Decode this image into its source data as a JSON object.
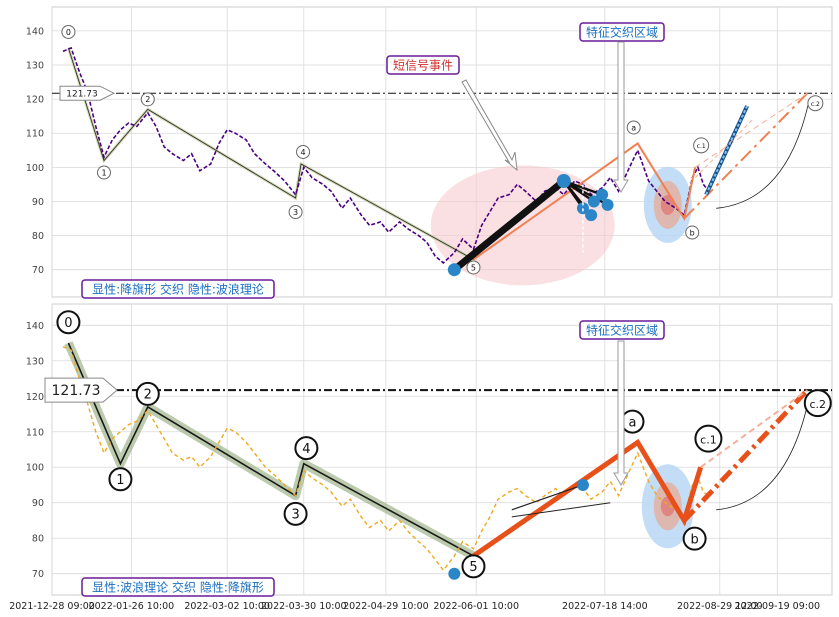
{
  "chart_data": [
    {
      "type": "line",
      "panel": "top",
      "caption": "显性:降旗形 交织 隐性:波浪理论",
      "ylim": [
        62,
        147
      ],
      "yticks": [
        70,
        80,
        90,
        100,
        110,
        120,
        130,
        140
      ],
      "grid": true,
      "reference_line": {
        "value": 121.73,
        "label": "121.73"
      },
      "wave_points": [
        {
          "label": "0",
          "x": "2022-01-03",
          "y": 135
        },
        {
          "label": "1",
          "x": "2022-01-16",
          "y": 102
        },
        {
          "label": "2",
          "x": "2022-02-01",
          "y": 117
        },
        {
          "label": "3",
          "x": "2022-03-27",
          "y": 91
        },
        {
          "label": "4",
          "x": "2022-03-29",
          "y": 101
        },
        {
          "label": "5",
          "x": "2022-05-31",
          "y": 73
        }
      ],
      "abc_points": [
        {
          "label": "a",
          "x": "2022-07-30",
          "y": 107
        },
        {
          "label": "b",
          "x": "2022-08-16",
          "y": 85
        },
        {
          "label": "c.1",
          "x": "2022-08-20",
          "y": 100
        },
        {
          "label": "c.2",
          "x": "2022-09-30",
          "y": 121.73
        }
      ],
      "annotations": [
        "短信号事件",
        "特征交织区域"
      ],
      "series": [
        {
          "name": "",
          "color": "#4b0082",
          "values": [
            [
              "2022-01-01",
              134
            ],
            [
              "2022-01-04",
              135
            ],
            [
              "2022-01-07",
              128
            ],
            [
              "2022-01-10",
              122
            ],
            [
              "2022-01-13",
              112
            ],
            [
              "2022-01-16",
              103
            ],
            [
              "2022-01-19",
              108
            ],
            [
              "2022-01-22",
              111
            ],
            [
              "2022-01-25",
              113
            ],
            [
              "2022-01-28",
              112
            ],
            [
              "2022-02-01",
              116
            ],
            [
              "2022-02-04",
              112
            ],
            [
              "2022-02-07",
              106
            ],
            [
              "2022-02-10",
              104
            ],
            [
              "2022-02-14",
              102
            ],
            [
              "2022-02-17",
              104
            ],
            [
              "2022-02-20",
              99
            ],
            [
              "2022-02-24",
              101
            ],
            [
              "2022-02-27",
              107
            ],
            [
              "2022-03-02",
              111
            ],
            [
              "2022-03-05",
              110
            ],
            [
              "2022-03-09",
              108
            ],
            [
              "2022-03-12",
              104
            ],
            [
              "2022-03-16",
              101
            ],
            [
              "2022-03-19",
              99
            ],
            [
              "2022-03-23",
              96
            ],
            [
              "2022-03-27",
              92
            ],
            [
              "2022-03-30",
              100
            ],
            [
              "2022-04-02",
              97
            ],
            [
              "2022-04-06",
              95
            ],
            [
              "2022-04-09",
              93
            ],
            [
              "2022-04-13",
              88
            ],
            [
              "2022-04-16",
              91
            ],
            [
              "2022-04-20",
              86
            ],
            [
              "2022-04-23",
              83
            ],
            [
              "2022-04-27",
              84
            ],
            [
              "2022-04-30",
              81
            ],
            [
              "2022-05-04",
              84
            ],
            [
              "2022-05-07",
              82
            ],
            [
              "2022-05-11",
              80
            ],
            [
              "2022-05-14",
              78
            ],
            [
              "2022-05-17",
              74
            ],
            [
              "2022-05-20",
              72
            ],
            [
              "2022-05-24",
              75
            ],
            [
              "2022-05-27",
              79
            ],
            [
              "2022-05-31",
              76
            ],
            [
              "2022-06-03",
              83
            ],
            [
              "2022-06-06",
              87
            ],
            [
              "2022-06-09",
              91
            ],
            [
              "2022-06-13",
              92
            ],
            [
              "2022-06-16",
              95
            ],
            [
              "2022-06-19",
              93
            ],
            [
              "2022-06-23",
              90
            ],
            [
              "2022-06-26",
              93
            ],
            [
              "2022-06-30",
              94
            ],
            [
              "2022-07-03",
              92
            ],
            [
              "2022-07-07",
              96
            ],
            [
              "2022-07-10",
              95
            ],
            [
              "2022-07-13",
              92
            ],
            [
              "2022-07-17",
              94
            ],
            [
              "2022-07-20",
              97
            ],
            [
              "2022-07-23",
              93
            ],
            [
              "2022-07-27",
              100
            ],
            [
              "2022-07-30",
              105
            ],
            [
              "2022-08-03",
              96
            ],
            [
              "2022-08-06",
              93
            ],
            [
              "2022-08-09",
              90
            ],
            [
              "2022-08-13",
              88
            ],
            [
              "2022-08-16",
              86
            ],
            [
              "2022-08-19",
              97
            ],
            [
              "2022-08-21",
              100
            ],
            [
              "2022-08-23",
              95
            ],
            [
              "2022-08-25",
              93
            ]
          ]
        }
      ]
    },
    {
      "type": "line",
      "panel": "bottom",
      "caption": "显性:波浪理论 交织 隐性:降旗形",
      "ylim": [
        64,
        146
      ],
      "yticks": [
        70,
        80,
        90,
        100,
        110,
        120,
        130,
        140
      ],
      "grid": true,
      "reference_line": {
        "value": 121.73,
        "label": "121.73"
      },
      "wave_points": [
        {
          "label": "0",
          "x": "2022-01-03",
          "y": 135
        },
        {
          "label": "1",
          "x": "2022-01-22",
          "y": 101
        },
        {
          "label": "2",
          "x": "2022-02-01",
          "y": 117
        },
        {
          "label": "3",
          "x": "2022-03-27",
          "y": 92
        },
        {
          "label": "4",
          "x": "2022-03-30",
          "y": 101
        },
        {
          "label": "5",
          "x": "2022-05-31",
          "y": 75
        }
      ],
      "abc_points": [
        {
          "label": "a",
          "x": "2022-07-30",
          "y": 107
        },
        {
          "label": "b",
          "x": "2022-08-16",
          "y": 85
        },
        {
          "label": "c.1",
          "x": "2022-08-22",
          "y": 100
        },
        {
          "label": "c.2",
          "x": "2022-09-30",
          "y": 121.73
        }
      ],
      "annotations": [
        "特征交织区域"
      ],
      "series": [
        {
          "name": "",
          "color": "#f0a81e",
          "values": [
            [
              "2022-01-01",
              134
            ],
            [
              "2022-01-04",
              133
            ],
            [
              "2022-01-07",
              125
            ],
            [
              "2022-01-10",
              118
            ],
            [
              "2022-01-13",
              110
            ],
            [
              "2022-01-16",
              104
            ],
            [
              "2022-01-19",
              108
            ],
            [
              "2022-01-22",
              110
            ],
            [
              "2022-01-25",
              112
            ],
            [
              "2022-01-28",
              113
            ],
            [
              "2022-02-01",
              116
            ],
            [
              "2022-02-04",
              112
            ],
            [
              "2022-02-07",
              108
            ],
            [
              "2022-02-10",
              104
            ],
            [
              "2022-02-14",
              102
            ],
            [
              "2022-02-17",
              103
            ],
            [
              "2022-02-20",
              100
            ],
            [
              "2022-02-24",
              103
            ],
            [
              "2022-02-27",
              107
            ],
            [
              "2022-03-02",
              111
            ],
            [
              "2022-03-05",
              110
            ],
            [
              "2022-03-09",
              107
            ],
            [
              "2022-03-12",
              104
            ],
            [
              "2022-03-16",
              100
            ],
            [
              "2022-03-19",
              98
            ],
            [
              "2022-03-23",
              95
            ],
            [
              "2022-03-27",
              92
            ],
            [
              "2022-03-30",
              99
            ],
            [
              "2022-04-02",
              97
            ],
            [
              "2022-04-06",
              95
            ],
            [
              "2022-04-09",
              93
            ],
            [
              "2022-04-13",
              89
            ],
            [
              "2022-04-16",
              91
            ],
            [
              "2022-04-20",
              86
            ],
            [
              "2022-04-23",
              83
            ],
            [
              "2022-04-27",
              85
            ],
            [
              "2022-04-30",
              82
            ],
            [
              "2022-05-04",
              85
            ],
            [
              "2022-05-07",
              82
            ],
            [
              "2022-05-11",
              79
            ],
            [
              "2022-05-14",
              77
            ],
            [
              "2022-05-17",
              74
            ],
            [
              "2022-05-20",
              71
            ],
            [
              "2022-05-24",
              75
            ],
            [
              "2022-05-27",
              79
            ],
            [
              "2022-05-31",
              77
            ],
            [
              "2022-06-03",
              82
            ],
            [
              "2022-06-06",
              86
            ],
            [
              "2022-06-09",
              91
            ],
            [
              "2022-06-13",
              93
            ],
            [
              "2022-06-16",
              94
            ],
            [
              "2022-06-19",
              92
            ],
            [
              "2022-06-23",
              90
            ],
            [
              "2022-06-26",
              92
            ],
            [
              "2022-06-30",
              94
            ],
            [
              "2022-07-03",
              92
            ],
            [
              "2022-07-07",
              95
            ],
            [
              "2022-07-10",
              94
            ],
            [
              "2022-07-13",
              91
            ],
            [
              "2022-07-17",
              93
            ],
            [
              "2022-07-20",
              96
            ],
            [
              "2022-07-23",
              92
            ],
            [
              "2022-07-27",
              99
            ],
            [
              "2022-07-30",
              104
            ],
            [
              "2022-08-03",
              96
            ],
            [
              "2022-08-06",
              92
            ],
            [
              "2022-08-09",
              90
            ],
            [
              "2022-08-13",
              88
            ],
            [
              "2022-08-16",
              86
            ],
            [
              "2022-08-19",
              95
            ],
            [
              "2022-08-21",
              97
            ],
            [
              "2022-08-23",
              93
            ],
            [
              "2022-08-25",
              92
            ]
          ]
        }
      ]
    }
  ],
  "x_axis": {
    "ticks": [
      {
        "label": "2021-12-28 09:00",
        "x": "2021-12-28"
      },
      {
        "label": "2022-01-26 10:00",
        "x": "2022-01-26"
      },
      {
        "label": "2022-03-02 10:00",
        "x": "2022-03-02"
      },
      {
        "label": "2022-03-30 10:00",
        "x": "2022-03-30"
      },
      {
        "label": "2022-04-29 10:00",
        "x": "2022-04-29"
      },
      {
        "label": "2022-06-01 10:00",
        "x": "2022-06-01"
      },
      {
        "label": "2022-07-18 14:00",
        "x": "2022-07-18"
      },
      {
        "label": "2022-08-29 12:00",
        "x": "2022-08-29"
      },
      {
        "label": "2022-09-19 09:00",
        "x": "2022-09-19"
      }
    ]
  },
  "colors": {
    "wave_band": "#8fa876",
    "abc_line": "#e8501a",
    "abc_projection": "#f08050",
    "caption_border": "#6a1b9a",
    "caption_text": "#1a6fc0",
    "event_box_text": "#d0302f",
    "zone_box_text": "#1a6fc0",
    "marker_blue": "#2b86c8",
    "ellipse_pink": "#f5c6cc",
    "ellipse_blue": "#b7d7f3",
    "ellipse_core": "#e07070"
  }
}
